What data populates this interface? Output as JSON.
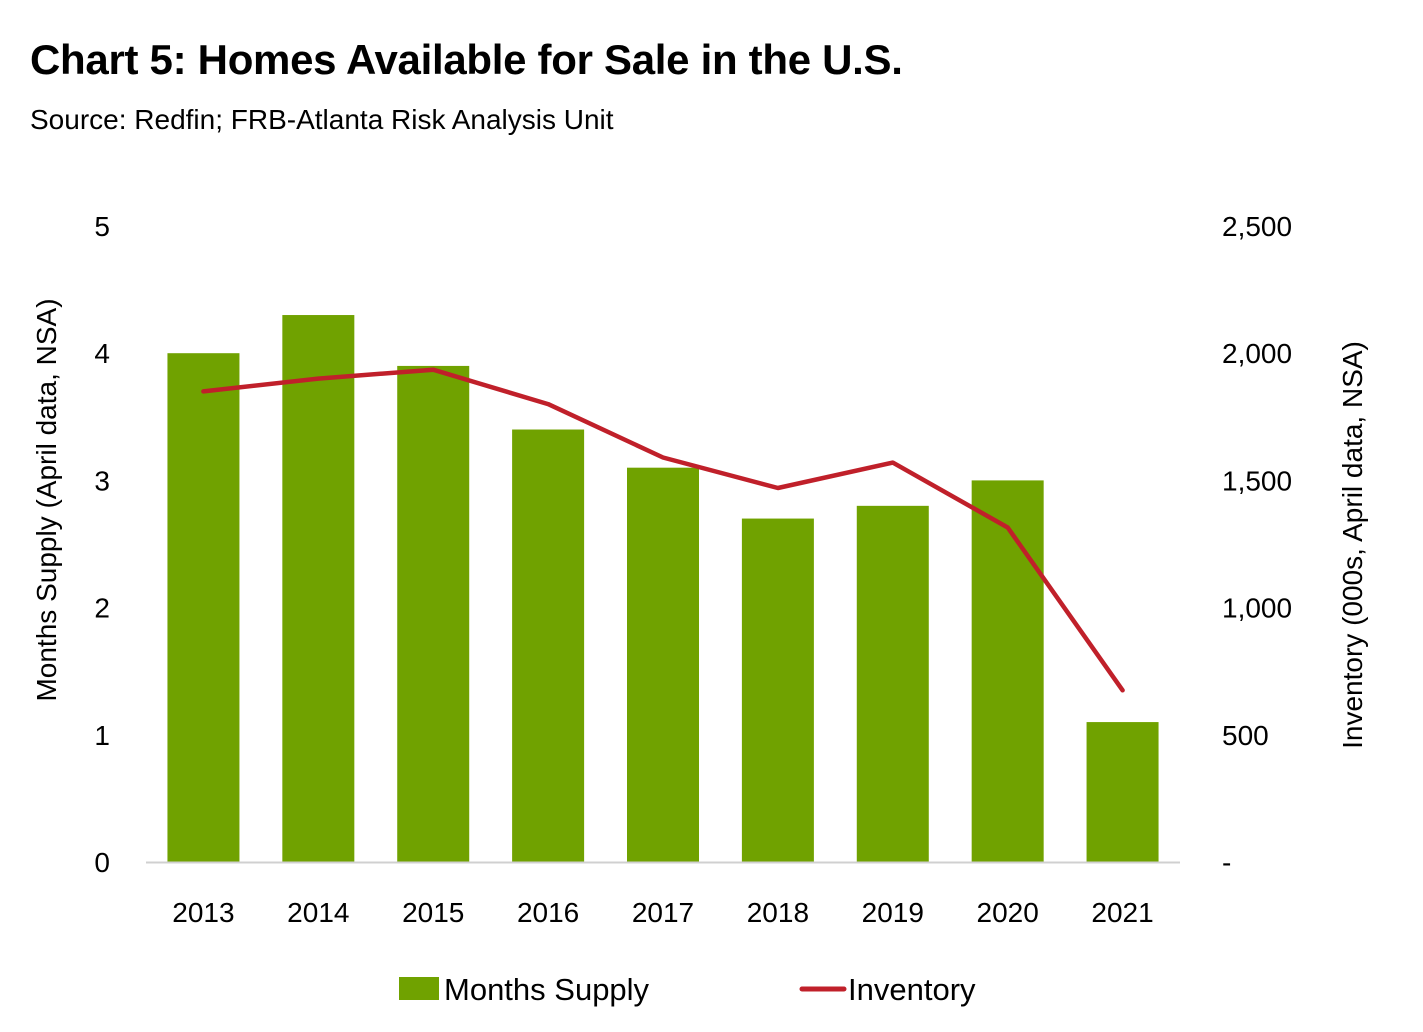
{
  "header": {
    "title": "Chart 5: Homes Available for Sale in the U.S.",
    "subtitle": "Source: Redfin; FRB-Atlanta Risk Analysis Unit"
  },
  "colors": {
    "bar": "#70a200",
    "line": "#c0202a",
    "baseline": "#d0d0d0"
  },
  "chart_data": {
    "type": "bar",
    "title": "Chart 5: Homes Available for Sale in the U.S.",
    "subtitle": "Source: Redfin; FRB-Atlanta Risk Analysis Unit",
    "categories": [
      "2013",
      "2014",
      "2015",
      "2016",
      "2017",
      "2018",
      "2019",
      "2020",
      "2021"
    ],
    "series": [
      {
        "name": "Months Supply",
        "type": "bar",
        "axis": "left",
        "values": [
          4.0,
          4.3,
          3.9,
          3.4,
          3.1,
          2.7,
          2.8,
          3.0,
          1.1
        ]
      },
      {
        "name": "Inventory",
        "type": "line",
        "axis": "right",
        "values": [
          1850,
          1900,
          1935,
          1800,
          1590,
          1470,
          1570,
          1315,
          675
        ]
      }
    ],
    "xlabel": "",
    "ylabel": "Months Supply (April data, NSA)",
    "ylabel_right": "Inventory (000s, April data, NSA)",
    "ylim": [
      0,
      5
    ],
    "ylim_right": [
      0,
      2500
    ],
    "yticks": [
      "0",
      "1",
      "2",
      "3",
      "4",
      "5"
    ],
    "yticks_right": [
      "-",
      "500",
      "1,000",
      "1,500",
      "2,000",
      "2,500"
    ],
    "grid": false,
    "legend": {
      "position": "bottom",
      "entries": [
        "Months Supply",
        "Inventory"
      ]
    }
  }
}
